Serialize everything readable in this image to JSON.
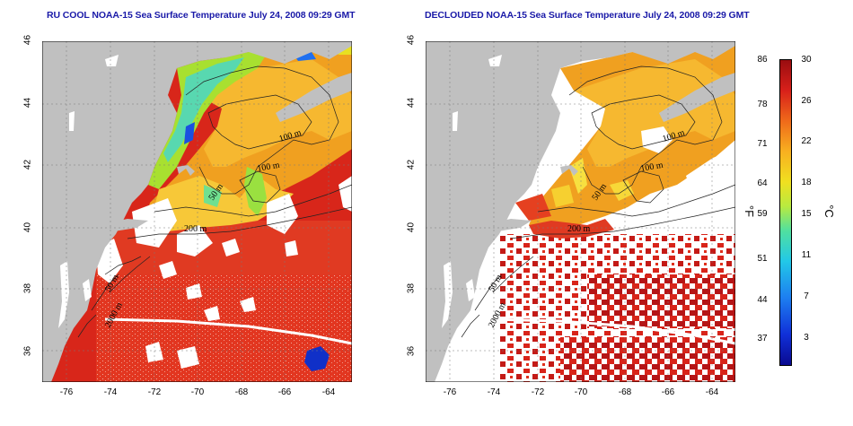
{
  "titles": {
    "left": "RU COOL NOAA-15 Sea Surface Temperature July 24, 2008 09:29 GMT",
    "right": "DECLOUDED NOAA-15 Sea Surface Temperature July 24, 2008 09:29 GMT"
  },
  "axes": {
    "lat_ticks": [
      "46",
      "44",
      "42",
      "40",
      "38",
      "36"
    ],
    "lon_ticks": [
      "-76",
      "-74",
      "-72",
      "-70",
      "-68",
      "-66",
      "-64"
    ]
  },
  "contours": {
    "labels_left": [
      "100 m",
      "100 m",
      "50 m",
      "200 m",
      "50 m",
      "2000 m"
    ],
    "labels_right": [
      "100 m",
      "100 m",
      "50 m",
      "200 m",
      "50 m",
      "2000 m"
    ]
  },
  "colorbar": {
    "fahrenheit_unit": "°F",
    "celsius_unit": "°C",
    "fahrenheit_ticks": [
      "86",
      "78",
      "71",
      "64",
      "59",
      "51",
      "44",
      "37"
    ],
    "celsius_ticks": [
      "30",
      "26",
      "22",
      "18",
      "15",
      "11",
      "7",
      "3"
    ]
  },
  "colors": {
    "land": "#c0c0c0",
    "cloud": "#ffffff",
    "warm": "#d8261a",
    "hot": "#a80f12",
    "mid": "#f09a22",
    "cool": "#30d0e0",
    "cold": "#1040d8",
    "title": "#1a1aa8"
  }
}
